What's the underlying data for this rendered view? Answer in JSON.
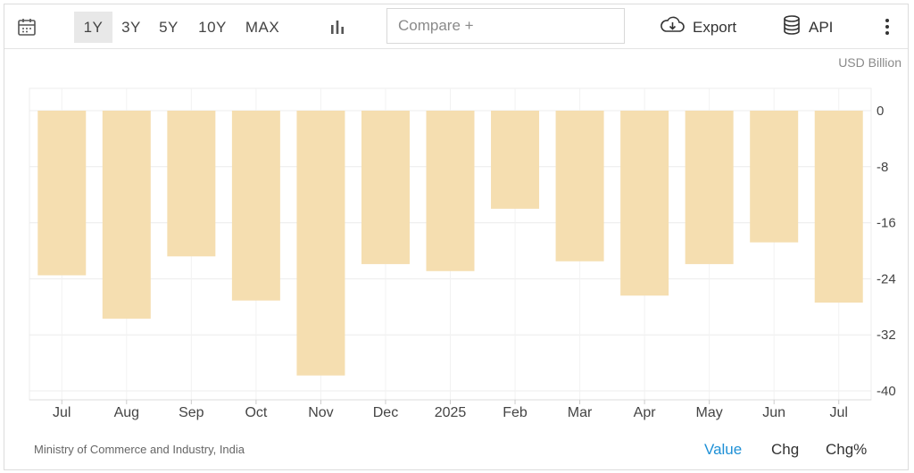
{
  "toolbar": {
    "calendar_icon": "calendar-icon",
    "ranges": [
      "1Y",
      "3Y",
      "5Y",
      "10Y",
      "MAX"
    ],
    "active_range": "1Y",
    "chart_type_icon": "bar-chart-icon",
    "compare_placeholder": "Compare +",
    "export_label": "Export",
    "export_icon": "cloud-download-icon",
    "api_label": "API",
    "api_icon": "database-icon",
    "more_icon": "vertical-dots-icon"
  },
  "unit_label": "USD Billion",
  "footer": {
    "source": "Ministry of Commerce and Industry, India",
    "tabs": [
      "Value",
      "Chg",
      "Chg%"
    ],
    "active_tab": "Value"
  },
  "colors": {
    "bar": "#f5deb0",
    "active_tab": "#1e90d6",
    "grid": "#ececec"
  },
  "chart_data": {
    "type": "bar",
    "categories": [
      "Jul",
      "Aug",
      "Sep",
      "Oct",
      "Nov",
      "Dec",
      "2025",
      "Feb",
      "Mar",
      "Apr",
      "May",
      "Jun",
      "Jul"
    ],
    "values": [
      -23.5,
      -29.7,
      -20.8,
      -27.1,
      -37.8,
      -21.9,
      -22.9,
      -14.0,
      -21.5,
      -26.4,
      -21.9,
      -18.8,
      -27.4
    ],
    "yticks": [
      0,
      -8,
      -16,
      -24,
      -32,
      -40
    ],
    "ylim": [
      -40,
      0
    ],
    "grid": true
  }
}
